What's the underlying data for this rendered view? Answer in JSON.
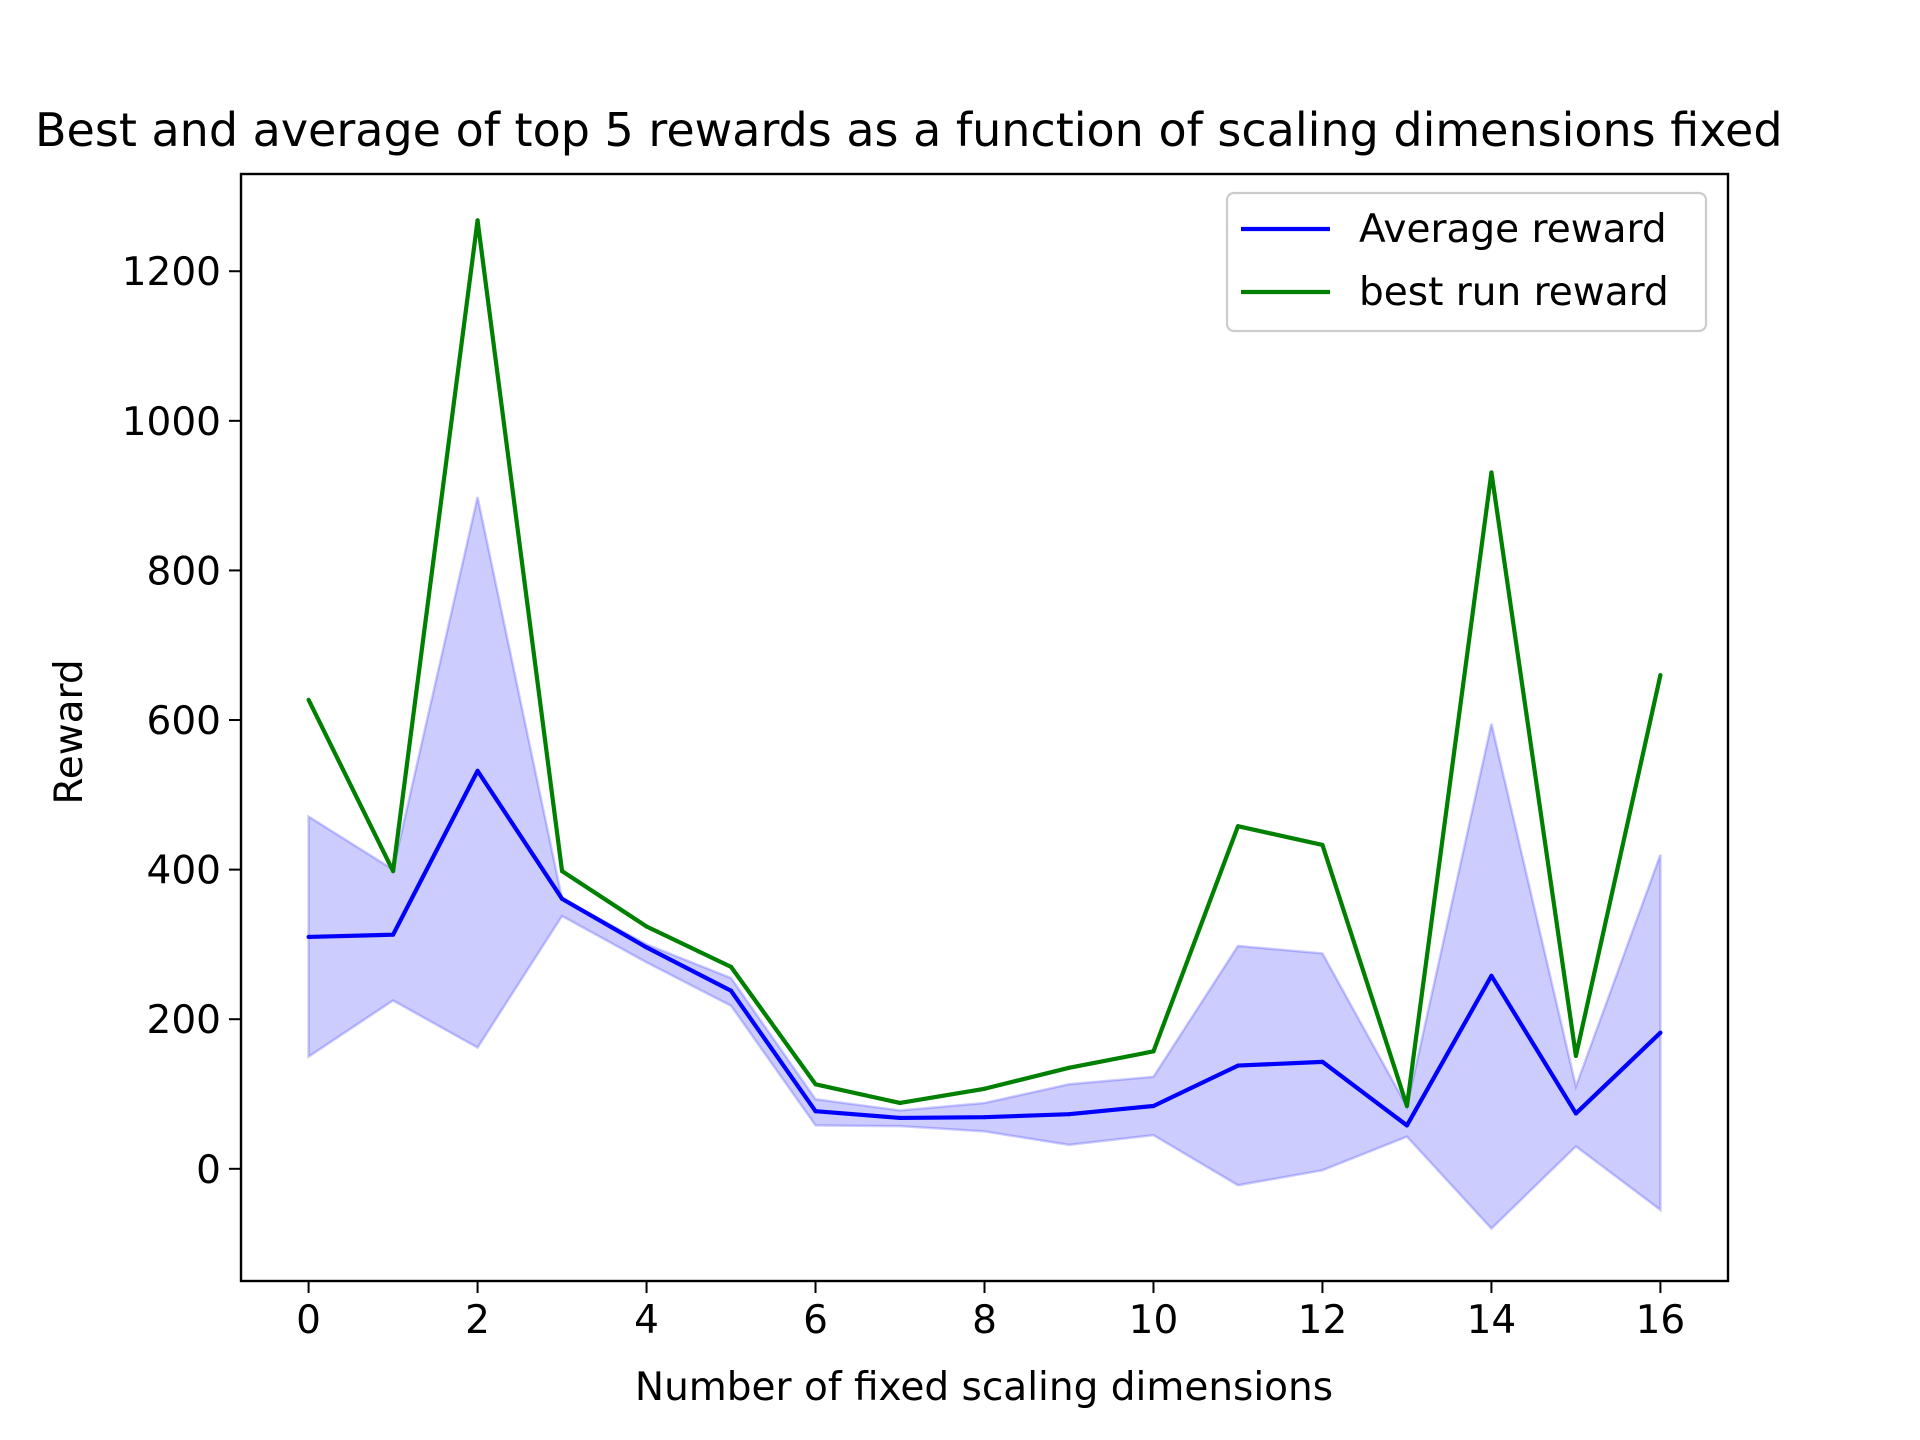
{
  "chart_data": {
    "type": "line",
    "title": "Best and average of top 5 rewards as a function of scaling dimensions fixed",
    "xlabel": "Number of fixed scaling dimensions",
    "ylabel": "Reward",
    "xlim": [
      -0.8,
      16.8
    ],
    "ylim": [
      -150,
      1330
    ],
    "xticks": [
      0,
      2,
      4,
      6,
      8,
      10,
      12,
      14,
      16
    ],
    "yticks": [
      0,
      200,
      400,
      600,
      800,
      1000,
      1200
    ],
    "grid": false,
    "legend_position": "top-right",
    "x": [
      0,
      1,
      2,
      3,
      4,
      5,
      6,
      7,
      8,
      9,
      10,
      11,
      12,
      13,
      14,
      15,
      16
    ],
    "series": [
      {
        "name": "Average reward",
        "color": "#0000ff",
        "values": [
          310,
          313,
          532,
          361,
          296,
          238,
          77,
          68,
          69,
          73,
          84,
          138,
          143,
          58,
          258,
          74,
          182
        ]
      },
      {
        "name": "best run reward",
        "color": "#008000",
        "values": [
          627,
          398,
          1268,
          398,
          324,
          270,
          113,
          88,
          107,
          135,
          157,
          458,
          433,
          84,
          931,
          151,
          660
        ]
      }
    ],
    "band": {
      "color": "#0000ff",
      "upper": [
        471,
        400,
        898,
        361,
        300,
        255,
        93,
        78,
        88,
        113,
        123,
        298,
        288,
        83,
        595,
        110,
        420
      ],
      "lower": [
        150,
        225,
        162,
        338,
        276,
        218,
        58,
        57,
        50,
        32,
        45,
        -22,
        -2,
        43,
        -80,
        30,
        -55
      ]
    }
  }
}
